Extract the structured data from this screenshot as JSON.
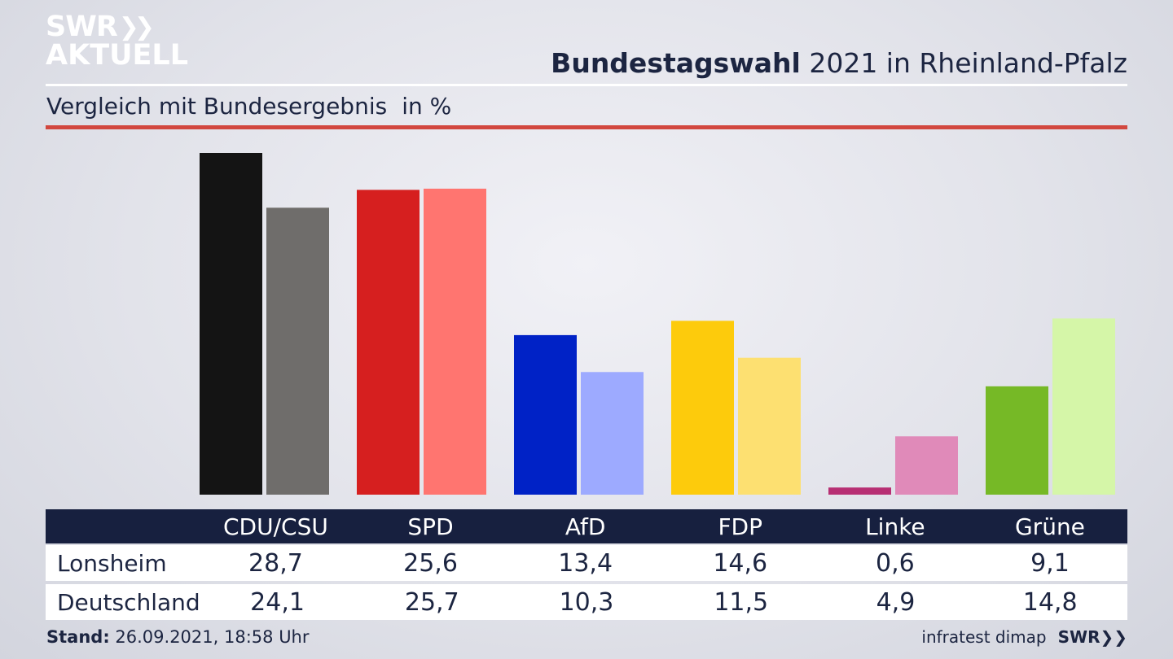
{
  "header": {
    "logo_line1": "SWR",
    "logo_line2": "AKTUELL",
    "title_bold": "Bundestagswahl",
    "title_rest": "2021 in Rheinland-Pfalz",
    "subtitle": "Vergleich mit Bundesergebnis",
    "unit": "in %"
  },
  "colors": {
    "accent_red_rule": "#d2473f",
    "table_header_bg": "#17203f",
    "text": "#1c2541"
  },
  "chart_data": {
    "type": "bar",
    "categories": [
      "CDU/CSU",
      "SPD",
      "AfD",
      "FDP",
      "Linke",
      "Grüne"
    ],
    "series": [
      {
        "name": "Lonsheim",
        "values": [
          28.7,
          25.6,
          13.4,
          14.6,
          0.6,
          9.1
        ],
        "colors": [
          "#141414",
          "#d61f1f",
          "#0022c6",
          "#fdcb0c",
          "#b72f73",
          "#76b926"
        ]
      },
      {
        "name": "Deutschland",
        "values": [
          24.1,
          25.7,
          10.3,
          11.5,
          4.9,
          14.8
        ],
        "colors": [
          "#6f6d6b",
          "#ff7570",
          "#9daaff",
          "#fde071",
          "#e08ab9",
          "#d5f6a8"
        ]
      }
    ],
    "ylim": [
      0,
      28.7
    ],
    "grid": false,
    "legend": "table-below"
  },
  "table": {
    "rows": [
      {
        "label": "Lonsheim",
        "values": [
          "28,7",
          "25,6",
          "13,4",
          "14,6",
          "0,6",
          "9,1"
        ]
      },
      {
        "label": "Deutschland",
        "values": [
          "24,1",
          "25,7",
          "10,3",
          "11,5",
          "4,9",
          "14,8"
        ]
      }
    ]
  },
  "footer": {
    "stand_label": "Stand:",
    "stand_value": "26.09.2021, 18:58 Uhr",
    "source": "infratest dimap",
    "brand": "SWR"
  }
}
